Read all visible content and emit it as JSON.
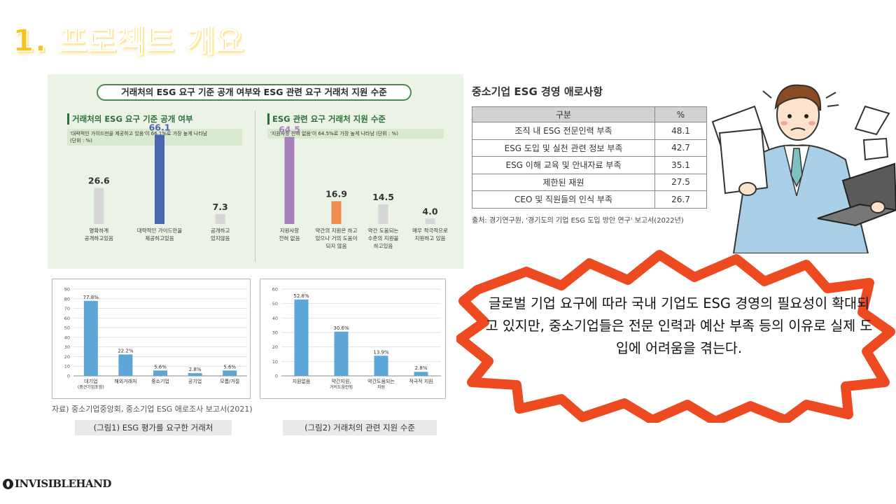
{
  "slide": {
    "title": "1. 프로젝트 개요",
    "logo_text": "INVISIBLEHAND"
  },
  "panel1": {
    "header": "거래처의 ESG 요구 기준 공개 여부와 ESG 관련 요구 거래처 지원 수준",
    "left_title": "거래처의 ESG 요구 기준 공개 여부",
    "left_note_line1": "'대략적인 가이드만을 제공하고 있음'이 66.1%로 가장 높게 나타남",
    "left_note_line2": "(단위 : %)",
    "right_title": "ESG 관련 요구 거래처 지원 수준",
    "right_note_line1": "'지원사항 전혀 없음'이 64.5%로 가장 높게 나타남 (단위 : %)"
  },
  "table": {
    "title": "중소기업 ESG 경영 애로사항",
    "headers": [
      "구분",
      "%"
    ],
    "rows": [
      [
        "조직 내 ESG 전문인력 부족",
        "48.1"
      ],
      [
        "ESG 도입 및 실천 관련 정보 부족",
        "42.7"
      ],
      [
        "ESG 이해 교육 및 안내자료 부족",
        "35.1"
      ],
      [
        "제한된 재원",
        "27.5"
      ],
      [
        "CEO 및 직원들의 인식 부족",
        "26.7"
      ]
    ],
    "source": "출처: 경기연구원, '경기도의 기업 ESG 도입 방안 연구' 보고서(2022년)"
  },
  "bottom": {
    "source": "자료) 중소기업중앙회, 중소기업 ESG 애로조사 보고서(2021)",
    "caption1": "(그림1) ESG 평가를 요구한 거래처",
    "caption2": "(그림2) 거래처의 관련 지원 수준"
  },
  "callout": {
    "text": "글로벌 기업 요구에 따라 국내 기업도 ESG 경영의 필요성이 확대되고 있지만, 중소기업들은 전문 인력과 예산 부족 등의 이유로 실제 도입에 어려움을 겪는다."
  },
  "colors": {
    "title_yellow": "#f6c21c",
    "burst_red": "#ee4a22",
    "bar_grey": "#d6d6d6",
    "bar_blue": "#4a66ae",
    "bar_purple": "#a780b8",
    "bar_orange": "#ee8c52",
    "bar_sky": "#5ca6d8"
  },
  "chart_data": [
    {
      "type": "bar",
      "title": "거래처의 ESG 요구 기준 공개 여부",
      "categories": [
        [
          "명확하게",
          "공개하고있음"
        ],
        [
          "대략적인 가이드만을",
          "제공하고있음"
        ],
        [
          "공개하고",
          "있지않음"
        ]
      ],
      "values": [
        26.6,
        66.1,
        7.3
      ],
      "colors": [
        "#d6d6d6",
        "#4a66ae",
        "#d6d6d6"
      ],
      "value_colors": [
        "#333333",
        "#4a66ae",
        "#333333"
      ],
      "unit": "%",
      "ylim": [
        0,
        70
      ]
    },
    {
      "type": "bar",
      "title": "ESG 관련 요구 거래처 지원 수준",
      "categories": [
        [
          "지원사항",
          "전혀 없음"
        ],
        [
          "약간의 지원은 하고",
          "있으나 거의 도움이",
          "되지 않음"
        ],
        [
          "약간 도움되는",
          "수준의 지원을",
          "하고있음"
        ],
        [
          "매우 적극적으로",
          "지원하고 있음"
        ]
      ],
      "values": [
        64.5,
        16.9,
        14.5,
        4.0
      ],
      "colors": [
        "#a780b8",
        "#ee8c52",
        "#d6d6d6",
        "#d6d6d6"
      ],
      "value_colors": [
        "#a780b8",
        "#333333",
        "#333333",
        "#333333"
      ],
      "value_labels": [
        "64.5",
        "16.9",
        "14.5",
        "4.0"
      ],
      "unit": "%",
      "ylim": [
        0,
        70
      ]
    },
    {
      "type": "bar",
      "title": "(그림1) ESG 평가를 요구한 거래처",
      "categories": [
        [
          "대기업",
          "(중견기업포함)"
        ],
        [
          "해외거래처"
        ],
        [
          "중소기업"
        ],
        [
          "공기업"
        ],
        [
          "모름/거절"
        ]
      ],
      "values": [
        77.8,
        22.2,
        5.6,
        2.8,
        5.6
      ],
      "value_labels": [
        "77.8%",
        "22.2%",
        "5.6%",
        "2.8%",
        "5.6%"
      ],
      "yticks": [
        0,
        10,
        20,
        30,
        40,
        50,
        60,
        70,
        80,
        90
      ],
      "ylim": [
        0,
        90
      ],
      "grid": true
    },
    {
      "type": "bar",
      "title": "(그림2) 거래처의 관련 지원 수준",
      "categories": [
        [
          "지원없음"
        ],
        [
          "약간지원,",
          "거의도움안됨"
        ],
        [
          "약간도움되는",
          "지원"
        ],
        [
          "적극적 지원"
        ]
      ],
      "values": [
        52.8,
        30.6,
        13.9,
        2.8
      ],
      "value_labels": [
        "52.8%",
        "30.6%",
        "13.9%",
        "2.8%"
      ],
      "yticks": [
        0,
        10,
        20,
        30,
        40,
        50,
        60
      ],
      "ylim": [
        0,
        60
      ],
      "grid": true
    }
  ]
}
